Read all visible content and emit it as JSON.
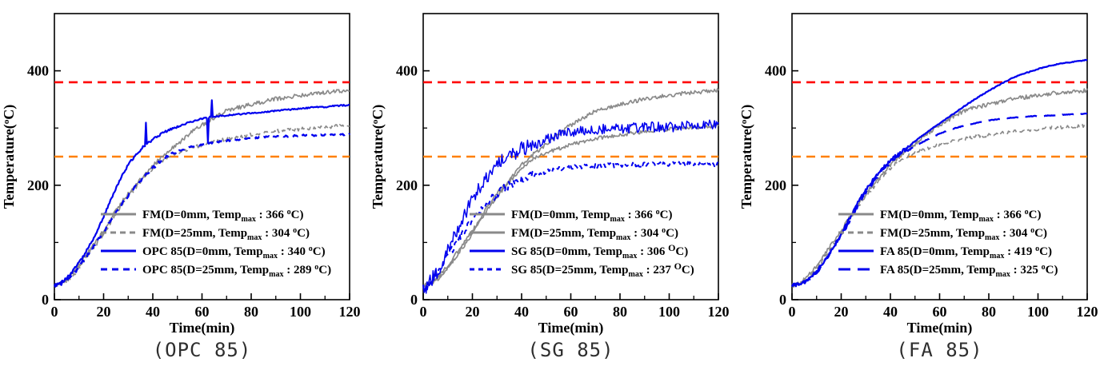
{
  "figure_name": "specimen-temperature-vs-time-three-panel",
  "reference_lines_legend": {
    "red_line_temp": 380,
    "orange_line_temp": 250
  },
  "chart_data": [
    {
      "type": "line",
      "caption": "(OPC 85)",
      "xlabel": "Time(min)",
      "ylabel_pre": "Temperature(",
      "ylabel_sup": "o",
      "ylabel_post": "C)",
      "xlim": [
        0,
        120
      ],
      "ylim": [
        0,
        500
      ],
      "x_major_ticks": [
        0,
        20,
        40,
        60,
        80,
        100,
        120
      ],
      "x_minor_ticks": [
        10,
        30,
        50,
        70,
        90,
        110
      ],
      "y_major_ticks": [
        0,
        200,
        400
      ],
      "y_minor_ticks": [
        100,
        300
      ],
      "grid": false,
      "legend_position": "inside lower right",
      "ref_lines": [
        {
          "y": 380,
          "color": "#ff0000",
          "style": "dashed"
        },
        {
          "y": 250,
          "color": "#ff8000",
          "style": "dashed"
        }
      ],
      "x": [
        0,
        5,
        10,
        15,
        20,
        25,
        30,
        35,
        40,
        45,
        50,
        55,
        60,
        65,
        70,
        75,
        80,
        85,
        90,
        95,
        100,
        105,
        110,
        115,
        120
      ],
      "series": [
        {
          "name": "FM(D=0mm)",
          "temp_max": 366,
          "color": "#8a8a8a",
          "dash": null,
          "width": 1.7,
          "noise": {
            "amp": 3.5
          },
          "seed": 11,
          "legend_pre": "FM(D=0mm, Temp",
          "legend_sub": "max",
          "legend_mid": " : 366 ",
          "legend_sup": "o",
          "legend_sup_big": false,
          "legend_post": "C)",
          "values": [
            25,
            35,
            60,
            90,
            120,
            155,
            185,
            210,
            235,
            255,
            272,
            290,
            305,
            318,
            330,
            336,
            341,
            346,
            351,
            354,
            357,
            360,
            362,
            364,
            366
          ]
        },
        {
          "name": "FM(D=25mm)",
          "temp_max": 304,
          "color": "#8a8a8a",
          "dash": "7 5",
          "width": 1.7,
          "noise": {
            "amp": 3.2
          },
          "seed": 22,
          "legend_pre": "FM(D=25mm, Temp",
          "legend_sub": "max",
          "legend_mid": " : 304 ",
          "legend_sup": "o",
          "legend_sup_big": false,
          "legend_post": "C)",
          "values": [
            25,
            33,
            55,
            85,
            115,
            150,
            180,
            205,
            230,
            246,
            256,
            264,
            271,
            276,
            281,
            285,
            288,
            291,
            294,
            296,
            298,
            300,
            301,
            303,
            304
          ]
        },
        {
          "name": "OPC 85(D=0mm)",
          "temp_max": 340,
          "color": "#0000ee",
          "dash": null,
          "width": 2.2,
          "noise": {
            "amp": 2.2,
            "amp_late": 1.2,
            "switch_t": 50
          },
          "seed": 33,
          "spikes": [
            {
              "t": 37,
              "dT": 40
            },
            {
              "t": 62.5,
              "dT": -45
            },
            {
              "t": 64,
              "dT": 28
            }
          ],
          "legend_pre": "OPC 85(D=0mm, Temp",
          "legend_sub": "max",
          "legend_mid": " : 340 ",
          "legend_sup": "o",
          "legend_sup_big": false,
          "legend_post": "C)",
          "values": [
            25,
            38,
            65,
            100,
            145,
            195,
            235,
            262,
            280,
            293,
            302,
            310,
            316,
            320,
            322,
            324,
            326,
            328,
            330,
            332,
            334,
            336,
            337,
            339,
            340
          ]
        },
        {
          "name": "OPC 85(D=25mm)",
          "temp_max": 289,
          "color": "#0000ee",
          "dash": "8 6",
          "width": 2.4,
          "noise": {
            "amp": 2.5,
            "amp_late": 1.5,
            "switch_t": 50
          },
          "seed": 44,
          "legend_pre": "OPC 85(D=25mm, Temp",
          "legend_sub": "max",
          "legend_mid": " : 289 ",
          "legend_sup": "o",
          "legend_sup_big": false,
          "legend_post": "C)",
          "values": [
            25,
            33,
            57,
            88,
            118,
            152,
            182,
            207,
            230,
            248,
            259,
            266,
            271,
            275,
            278,
            280,
            282,
            284,
            285,
            286,
            287,
            287,
            288,
            288,
            289
          ]
        }
      ]
    },
    {
      "type": "line",
      "caption": "(SG 85)",
      "xlabel": "Time(min)",
      "ylabel_pre": "Temperature(",
      "ylabel_sup": "o",
      "ylabel_post": "C)",
      "xlim": [
        0,
        120
      ],
      "ylim": [
        0,
        500
      ],
      "x_major_ticks": [
        0,
        20,
        40,
        60,
        80,
        100,
        120
      ],
      "x_minor_ticks": [
        10,
        30,
        50,
        70,
        90,
        110
      ],
      "y_major_ticks": [
        0,
        200,
        400
      ],
      "y_minor_ticks": [
        100,
        300
      ],
      "grid": false,
      "legend_position": "inside lower right",
      "ref_lines": [
        {
          "y": 380,
          "color": "#ff0000",
          "style": "dashed"
        },
        {
          "y": 250,
          "color": "#ff8000",
          "style": "dashed"
        }
      ],
      "x": [
        0,
        5,
        10,
        15,
        20,
        25,
        30,
        35,
        40,
        45,
        50,
        55,
        60,
        65,
        70,
        75,
        80,
        85,
        90,
        95,
        100,
        105,
        110,
        115,
        120
      ],
      "series": [
        {
          "name": "FM(D=0mm)",
          "temp_max": 366,
          "color": "#8a8a8a",
          "dash": null,
          "width": 1.7,
          "noise": {
            "amp": 3.5
          },
          "seed": 55,
          "legend_pre": "FM(D=0mm, Temp",
          "legend_sub": "max",
          "legend_mid": " : 366 ",
          "legend_sup": "o",
          "legend_sup_big": false,
          "legend_post": "C)",
          "values": [
            25,
            35,
            60,
            90,
            120,
            155,
            185,
            210,
            235,
            255,
            272,
            290,
            305,
            318,
            330,
            336,
            341,
            346,
            351,
            354,
            357,
            360,
            362,
            364,
            366
          ]
        },
        {
          "name": "FM(D=25mm)",
          "temp_max": 304,
          "color": "#8a8a8a",
          "dash": null,
          "width": 1.7,
          "noise": {
            "amp": 3.2
          },
          "seed": 66,
          "legend_pre": "FM(D=25mm, Temp",
          "legend_sub": "max",
          "legend_mid": " : 304 ",
          "legend_sup": "o",
          "legend_sup_big": false,
          "legend_post": "C)",
          "values": [
            25,
            33,
            55,
            85,
            115,
            150,
            180,
            205,
            230,
            246,
            256,
            264,
            271,
            276,
            281,
            285,
            288,
            291,
            294,
            296,
            298,
            300,
            301,
            303,
            304
          ]
        },
        {
          "name": "SG 85(D=0mm)",
          "temp_max": 306,
          "color": "#0000ee",
          "dash": null,
          "width": 1.5,
          "noise": {
            "amp": 13,
            "amp_late": 9,
            "switch_t": 50
          },
          "seed": 77,
          "legend_pre": "SG 85(D=0mm, Temp",
          "legend_sub": "max",
          "legend_mid": " : 306 ",
          "legend_sup": "O",
          "legend_sup_big": true,
          "legend_post": "C)",
          "values": [
            20,
            45,
            90,
            135,
            175,
            210,
            235,
            252,
            263,
            272,
            280,
            287,
            292,
            295,
            297,
            298,
            299,
            300,
            301,
            302,
            302,
            303,
            304,
            305,
            306
          ]
        },
        {
          "name": "SG 85(D=25mm)",
          "temp_max": 237,
          "color": "#0000ee",
          "dash": "6 5",
          "width": 2.0,
          "noise": {
            "amp": 7,
            "amp_late": 4,
            "switch_t": 45
          },
          "seed": 88,
          "legend_pre": "SG 85(D=25mm, Temp",
          "legend_sub": "max",
          "legend_mid": " : 237 ",
          "legend_sup": "O",
          "legend_sup_big": true,
          "legend_post": "C)",
          "values": [
            20,
            40,
            75,
            110,
            140,
            165,
            185,
            200,
            210,
            218,
            224,
            228,
            231,
            233,
            234,
            235,
            235,
            236,
            236,
            236,
            237,
            237,
            237,
            237,
            237
          ]
        }
      ]
    },
    {
      "type": "line",
      "caption": "(FA 85)",
      "xlabel": "Time(min)",
      "ylabel_pre": "Temperature(",
      "ylabel_sup": "o",
      "ylabel_post": "C)",
      "xlim": [
        0,
        120
      ],
      "ylim": [
        0,
        500
      ],
      "x_major_ticks": [
        0,
        20,
        40,
        60,
        80,
        100,
        120
      ],
      "x_minor_ticks": [
        10,
        30,
        50,
        70,
        90,
        110
      ],
      "y_major_ticks": [
        0,
        200,
        400
      ],
      "y_minor_ticks": [
        100,
        300
      ],
      "grid": false,
      "legend_position": "inside lower right",
      "ref_lines": [
        {
          "y": 380,
          "color": "#ff0000",
          "style": "dashed"
        },
        {
          "y": 250,
          "color": "#ff8000",
          "style": "dashed"
        }
      ],
      "x": [
        0,
        5,
        10,
        15,
        20,
        25,
        30,
        35,
        40,
        45,
        50,
        55,
        60,
        65,
        70,
        75,
        80,
        85,
        90,
        95,
        100,
        105,
        110,
        115,
        120
      ],
      "series": [
        {
          "name": "FM(D=0mm)",
          "temp_max": 366,
          "color": "#8a8a8a",
          "dash": null,
          "width": 1.7,
          "noise": {
            "amp": 3.5
          },
          "seed": 99,
          "legend_pre": "FM(D=0mm, Temp",
          "legend_sub": "max",
          "legend_mid": " : 366 ",
          "legend_sup": "o",
          "legend_sup_big": false,
          "legend_post": "C)",
          "values": [
            25,
            35,
            60,
            90,
            120,
            155,
            185,
            210,
            235,
            255,
            272,
            290,
            305,
            318,
            330,
            336,
            341,
            346,
            351,
            354,
            357,
            360,
            362,
            364,
            366
          ]
        },
        {
          "name": "FM(D=25mm)",
          "temp_max": 304,
          "color": "#8a8a8a",
          "dash": "7 5",
          "width": 1.7,
          "noise": {
            "amp": 3.2
          },
          "seed": 111,
          "legend_pre": "FM(D=25mm, Temp",
          "legend_sub": "max",
          "legend_mid": " : 304 ",
          "legend_sup": "o",
          "legend_sup_big": false,
          "legend_post": "C)",
          "values": [
            25,
            33,
            55,
            85,
            115,
            150,
            180,
            205,
            230,
            246,
            256,
            264,
            271,
            276,
            281,
            285,
            288,
            291,
            294,
            296,
            298,
            300,
            301,
            303,
            304
          ]
        },
        {
          "name": "FA 85(D=0mm)",
          "temp_max": 419,
          "color": "#0000ee",
          "dash": null,
          "width": 2.3,
          "noise": {
            "amp": 2.8,
            "amp_late": 0.7,
            "switch_t": 48
          },
          "seed": 122,
          "legend_pre": "FA 85(D=0mm, Temp",
          "legend_sub": "max",
          "legend_mid": " : 419 ",
          "legend_sup": "o",
          "legend_sup_big": false,
          "legend_post": "C)",
          "values": [
            25,
            32,
            50,
            80,
            115,
            155,
            192,
            220,
            243,
            260,
            277,
            293,
            308,
            323,
            338,
            352,
            365,
            377,
            388,
            396,
            403,
            409,
            413,
            416,
            419
          ]
        },
        {
          "name": "FA 85(D=25mm)",
          "temp_max": 325,
          "color": "#0000ee",
          "dash": "15 9",
          "width": 2.3,
          "noise": {
            "amp": 2.8,
            "amp_late": 0.6,
            "switch_t": 48
          },
          "seed": 133,
          "legend_pre": "FA 85(D=25mm, Temp",
          "legend_sub": "max",
          "legend_mid": " : 325 ",
          "legend_sup": "o",
          "legend_sup_big": false,
          "legend_post": "C)",
          "values": [
            25,
            30,
            48,
            78,
            112,
            150,
            188,
            216,
            240,
            256,
            268,
            280,
            290,
            298,
            304,
            309,
            313,
            316,
            318,
            320,
            321,
            322,
            323,
            324,
            325
          ]
        }
      ]
    }
  ]
}
